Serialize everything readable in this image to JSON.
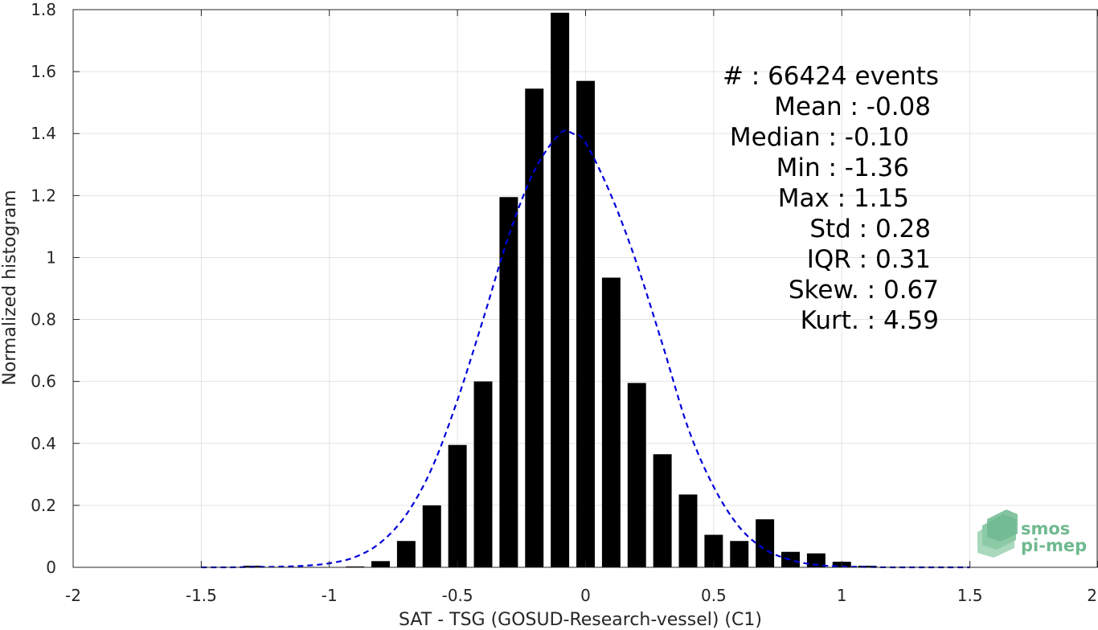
{
  "chart_data": {
    "type": "bar",
    "xlabel": "SAT - TSG (GOSUD-Research-vessel) (C1)",
    "ylabel": "Normalized histogram",
    "xlim": [
      -2,
      2
    ],
    "ylim": [
      0,
      1.8
    ],
    "grid": true,
    "x_ticks": [
      {
        "value": -2,
        "label": "-2"
      },
      {
        "value": -1.5,
        "label": "-1.5"
      },
      {
        "value": -1,
        "label": "-1"
      },
      {
        "value": -0.5,
        "label": "-0.5"
      },
      {
        "value": 0,
        "label": "0"
      },
      {
        "value": 0.5,
        "label": "0.5"
      },
      {
        "value": 1,
        "label": "1"
      },
      {
        "value": 1.5,
        "label": "1.5"
      },
      {
        "value": 2,
        "label": "2"
      }
    ],
    "y_ticks": [
      {
        "value": 0,
        "label": "0"
      },
      {
        "value": 0.2,
        "label": "0.2"
      },
      {
        "value": 0.4,
        "label": "0.4"
      },
      {
        "value": 0.6,
        "label": "0.6"
      },
      {
        "value": 0.8,
        "label": "0.8"
      },
      {
        "value": 1,
        "label": "1"
      },
      {
        "value": 1.2,
        "label": "1.2"
      },
      {
        "value": 1.4,
        "label": "1.4"
      },
      {
        "value": 1.6,
        "label": "1.6"
      },
      {
        "value": 1.8,
        "label": "1.8"
      }
    ],
    "bin_width": 0.1,
    "bar_color": "#000000",
    "bars": [
      {
        "x": -1.3,
        "y": 0.005
      },
      {
        "x": -0.9,
        "y": 0.003
      },
      {
        "x": -0.8,
        "y": 0.02
      },
      {
        "x": -0.7,
        "y": 0.085
      },
      {
        "x": -0.6,
        "y": 0.2
      },
      {
        "x": -0.5,
        "y": 0.395
      },
      {
        "x": -0.4,
        "y": 0.6
      },
      {
        "x": -0.3,
        "y": 1.195
      },
      {
        "x": -0.2,
        "y": 1.545
      },
      {
        "x": -0.1,
        "y": 1.79
      },
      {
        "x": 0.0,
        "y": 1.57
      },
      {
        "x": 0.1,
        "y": 0.935
      },
      {
        "x": 0.2,
        "y": 0.595
      },
      {
        "x": 0.3,
        "y": 0.365
      },
      {
        "x": 0.4,
        "y": 0.235
      },
      {
        "x": 0.5,
        "y": 0.105
      },
      {
        "x": 0.6,
        "y": 0.085
      },
      {
        "x": 0.7,
        "y": 0.155
      },
      {
        "x": 0.8,
        "y": 0.05
      },
      {
        "x": 0.9,
        "y": 0.045
      },
      {
        "x": 1.0,
        "y": 0.018
      },
      {
        "x": 1.1,
        "y": 0.005
      }
    ],
    "fit": {
      "style": "dashed",
      "color": "#0000dd",
      "x": [
        -1.5,
        -1.4,
        -1.3,
        -1.2,
        -1.1,
        -1.0,
        -0.9,
        -0.8,
        -0.7,
        -0.6,
        -0.5,
        -0.4,
        -0.3,
        -0.2,
        -0.1,
        -0.05,
        0.0,
        0.1,
        0.2,
        0.3,
        0.4,
        0.5,
        0.6,
        0.7,
        0.8,
        0.9,
        1.0,
        1.1,
        1.2,
        1.3,
        1.4,
        1.5
      ],
      "y": [
        0.0,
        0.0,
        0.001,
        0.002,
        0.005,
        0.013,
        0.033,
        0.08,
        0.17,
        0.32,
        0.54,
        0.8,
        1.07,
        1.28,
        1.4,
        1.4,
        1.37,
        1.2,
        0.98,
        0.72,
        0.45,
        0.26,
        0.13,
        0.058,
        0.024,
        0.008,
        0.003,
        0.001,
        0.0,
        0.0,
        0.0,
        0.0
      ]
    },
    "stats": [
      "#  : 66424 events",
      "Mean : -0.08",
      "Median : -0.10",
      "Min : -1.36",
      "Max : 1.15",
      "Std : 0.28",
      "IQR : 0.31",
      "Skew. : 0.67",
      "Kurt. : 4.59"
    ]
  },
  "logo": {
    "line1": "smos",
    "line2": "pi-mep",
    "color": "#6fb98f"
  }
}
